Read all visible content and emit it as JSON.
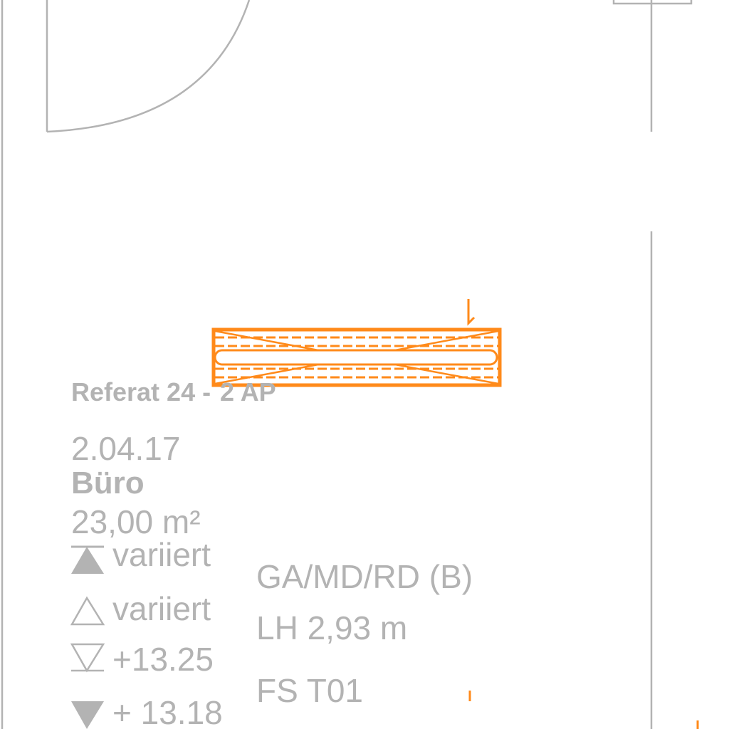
{
  "room": {
    "department": "Referat 24 - ",
    "workplaces": "2 AP",
    "number": "2.04.17",
    "name": "Büro",
    "area": "23,00 m²"
  },
  "levels": {
    "top_filled": "variiert",
    "top_outline": "variiert",
    "bottom_outline": "+13.25",
    "bottom_filled": "+ 13.18"
  },
  "finish": {
    "code": "GA/MD/RD (B)",
    "clear_height": "LH 2,93 m",
    "fire_code": "FS T01"
  },
  "colors": {
    "line": "#b3b3b3",
    "accent": "#ff8a1a"
  }
}
